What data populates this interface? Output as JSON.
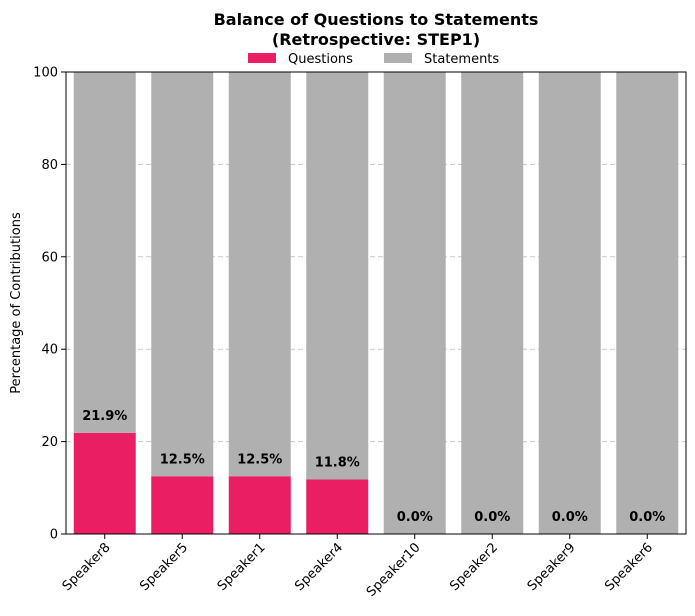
{
  "chart_data": {
    "type": "bar",
    "stacked": true,
    "title_line1": "Balance of Questions to Statements",
    "title_line2": "(Retrospective: STEP1)",
    "xlabel": "",
    "ylabel": "Percentage of Contributions",
    "ylim": [
      0,
      100
    ],
    "yticks": [
      "0",
      "20",
      "40",
      "60",
      "80",
      "100"
    ],
    "grid": "horizontal-dashed",
    "legend_placement": "top-center",
    "categories": [
      "Speaker8",
      "Speaker5",
      "Speaker1",
      "Speaker4",
      "Speaker10",
      "Speaker2",
      "Speaker9",
      "Speaker6"
    ],
    "series": [
      {
        "name": "Questions",
        "color": "#e91e63",
        "values": [
          21.9,
          12.5,
          12.5,
          11.8,
          0.0,
          0.0,
          0.0,
          0.0
        ]
      },
      {
        "name": "Statements",
        "color": "#b0b0b0",
        "values": [
          78.1,
          87.5,
          87.5,
          88.2,
          100.0,
          100.0,
          100.0,
          100.0
        ]
      }
    ],
    "data_labels": [
      "21.9%",
      "12.5%",
      "12.5%",
      "11.8%",
      "0.0%",
      "0.0%",
      "0.0%",
      "0.0%"
    ]
  }
}
